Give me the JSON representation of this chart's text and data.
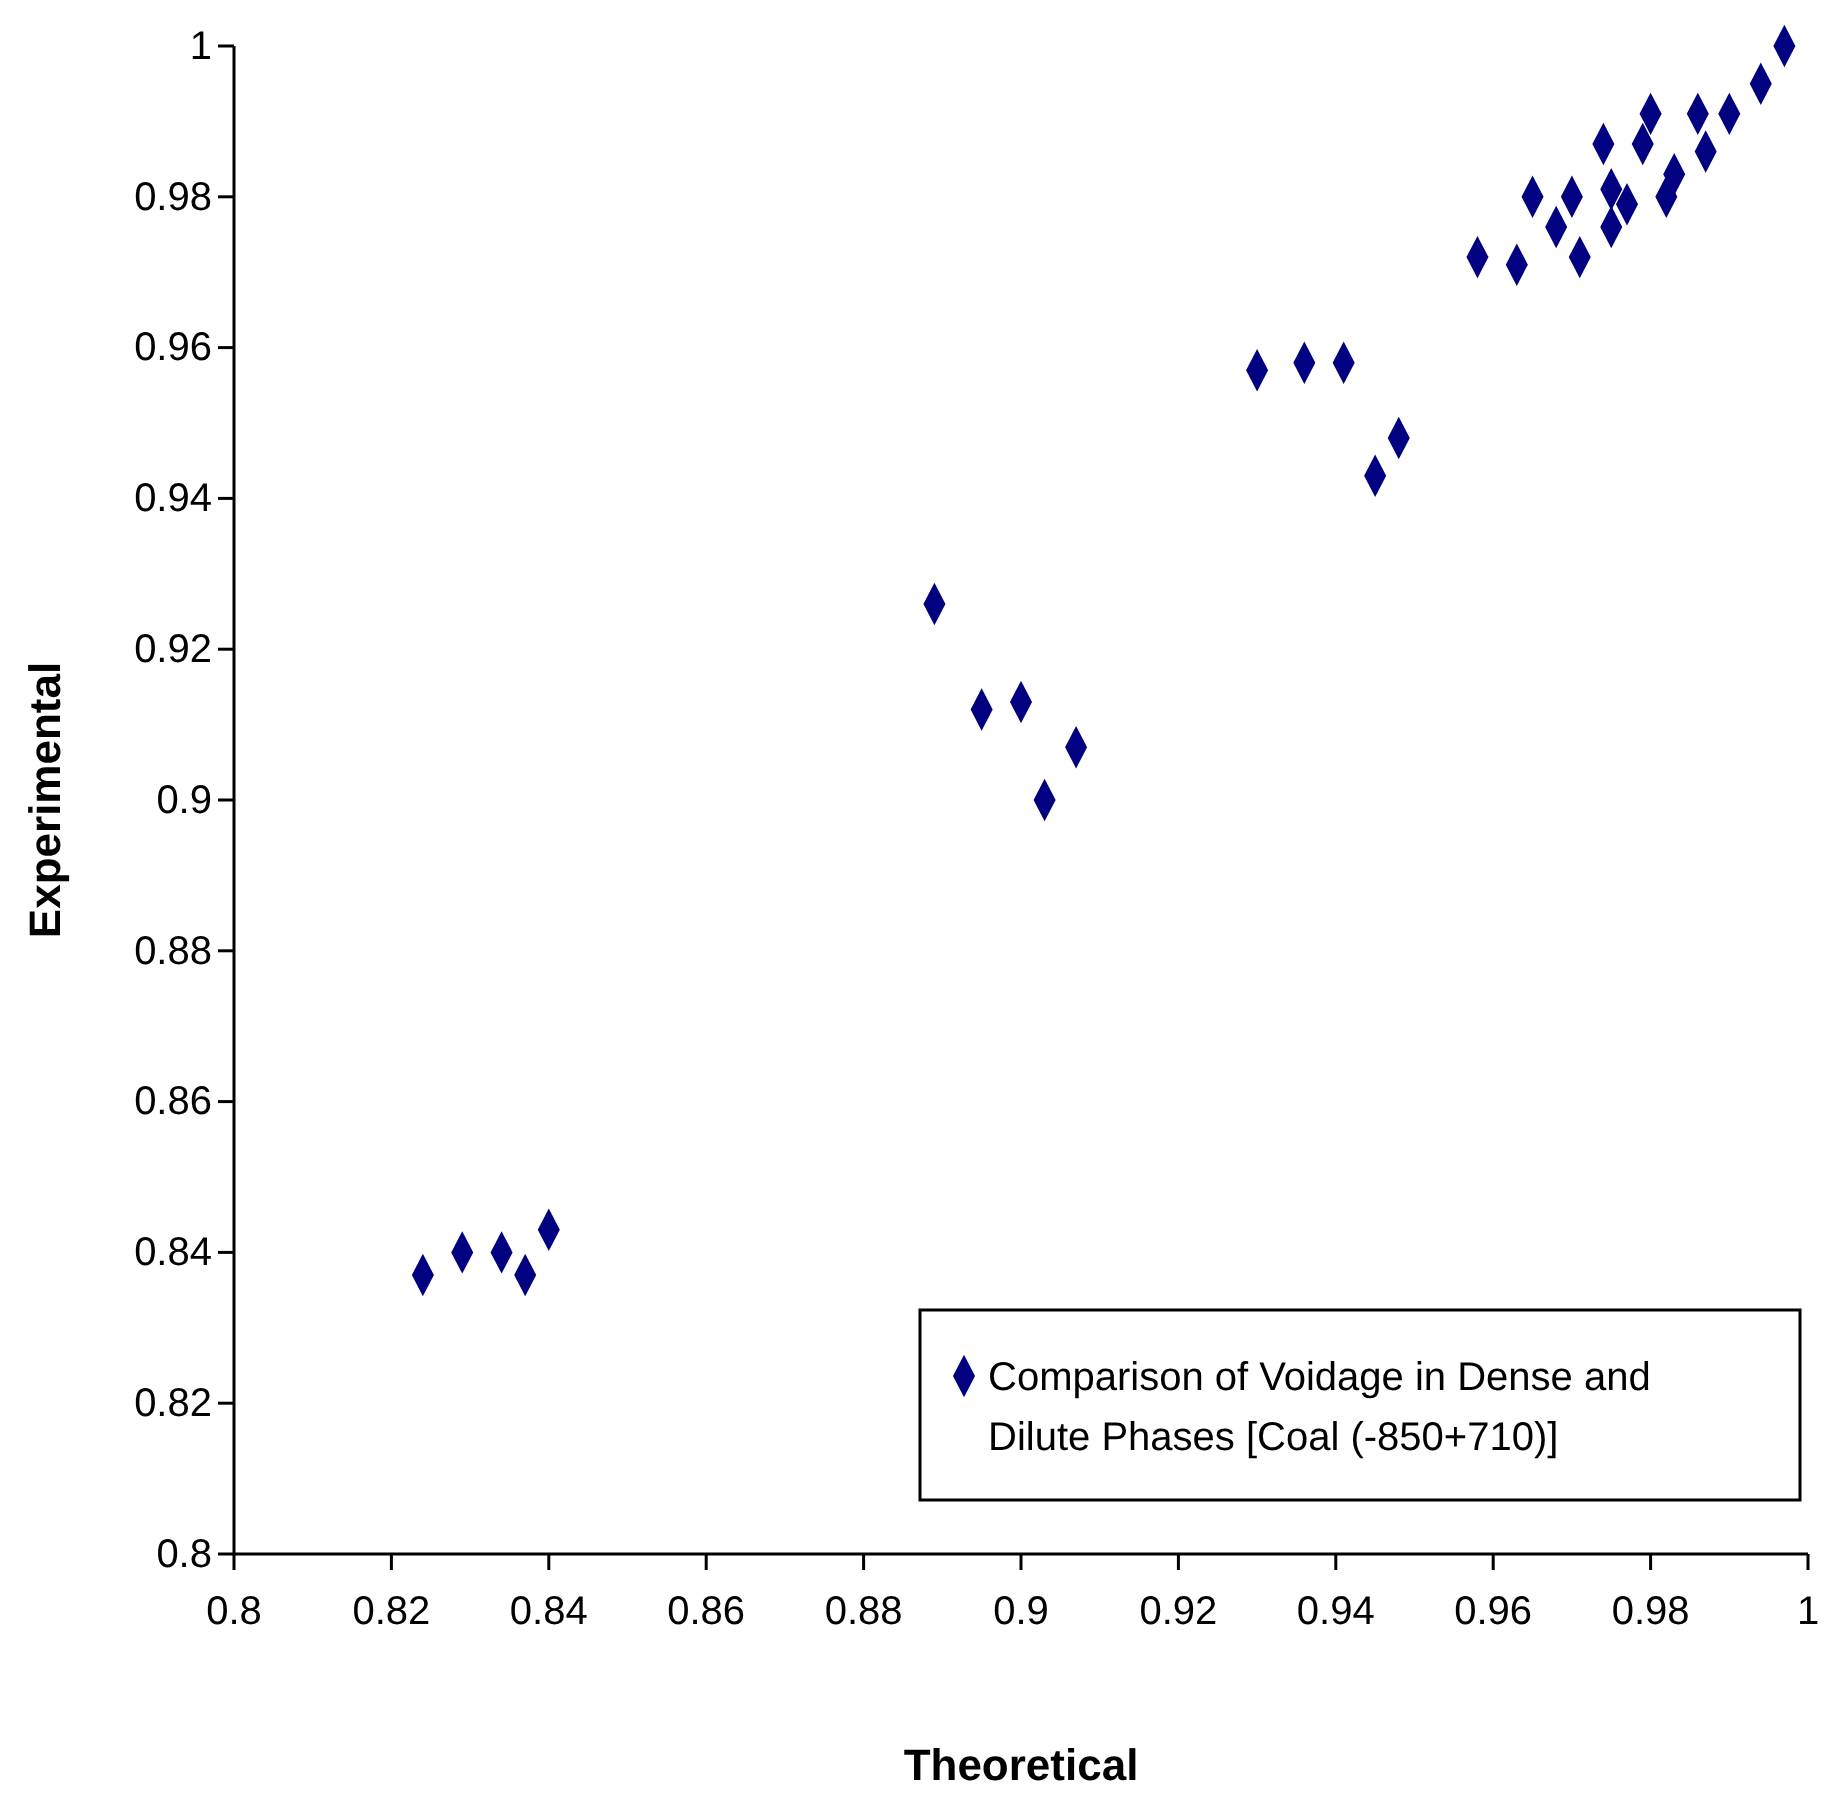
{
  "chart_data": {
    "type": "scatter",
    "xlabel": "Theoretical",
    "ylabel": "Experimental",
    "xlim": [
      0.8,
      1
    ],
    "ylim": [
      0.8,
      1
    ],
    "xticks": [
      0.8,
      0.82,
      0.84,
      0.86,
      0.88,
      0.9,
      0.92,
      0.94,
      0.96,
      0.98,
      1
    ],
    "yticks": [
      0.8,
      0.82,
      0.84,
      0.86,
      0.88,
      0.9,
      0.92,
      0.94,
      0.96,
      0.98,
      1
    ],
    "grid": false,
    "legend": "bottom right",
    "marker": "diamond",
    "series": [
      {
        "name": "Comparison of Voidage in Dense and Dilute Phases [Coal (-850+710)]",
        "color": "#000080",
        "x": [
          0.824,
          0.829,
          0.834,
          0.837,
          0.84,
          0.889,
          0.895,
          0.9,
          0.907,
          0.903,
          0.997,
          0.994,
          0.99,
          0.986,
          0.987,
          0.98,
          0.979,
          0.974,
          0.983,
          0.982,
          0.975,
          0.977,
          0.97,
          0.965,
          0.968,
          0.975,
          0.971,
          0.963,
          0.958,
          0.93,
          0.936,
          0.941,
          0.948,
          0.945
        ],
        "values": [
          0.837,
          0.84,
          0.84,
          0.837,
          0.843,
          0.926,
          0.912,
          0.913,
          0.907,
          0.9,
          1.0,
          0.995,
          0.991,
          0.991,
          0.986,
          0.991,
          0.987,
          0.987,
          0.983,
          0.98,
          0.981,
          0.979,
          0.98,
          0.98,
          0.976,
          0.976,
          0.972,
          0.971,
          0.972,
          0.957,
          0.958,
          0.958,
          0.948,
          0.943
        ]
      }
    ]
  }
}
